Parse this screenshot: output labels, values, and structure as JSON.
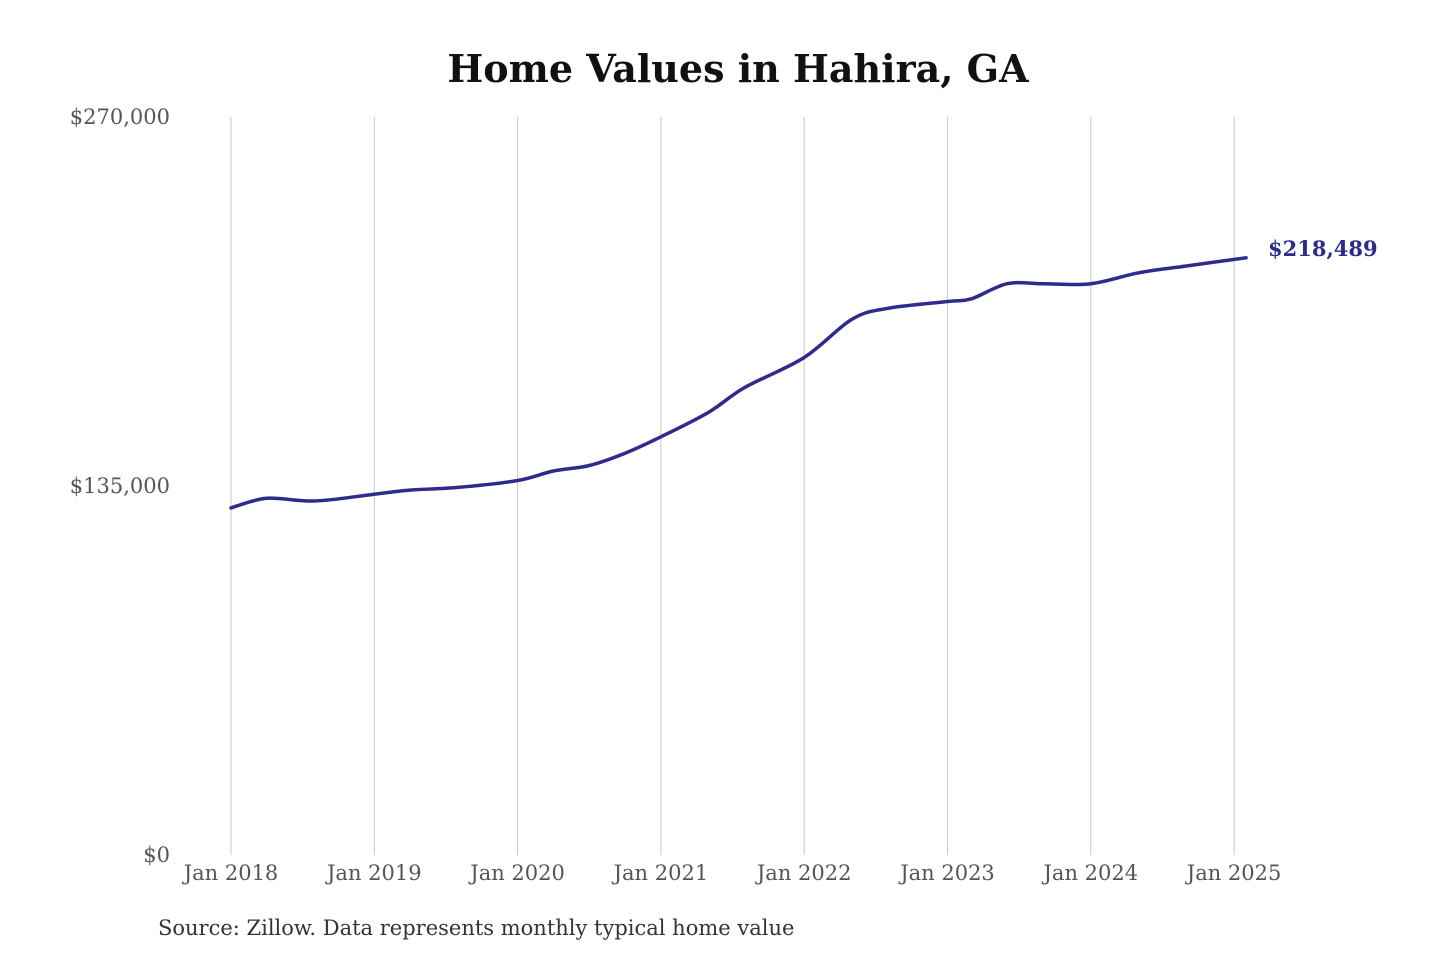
{
  "chart_data": {
    "type": "line",
    "title": "Home Values in Hahira, GA",
    "xlabel": "",
    "ylabel": "",
    "ylim": [
      0,
      270000
    ],
    "yticks": [
      {
        "value": 0,
        "label": "$0"
      },
      {
        "value": 135000,
        "label": "$135,000"
      },
      {
        "value": 270000,
        "label": "$270,000"
      }
    ],
    "xticks": [
      {
        "value": "2018-01",
        "label": "Jan 2018"
      },
      {
        "value": "2019-01",
        "label": "Jan 2019"
      },
      {
        "value": "2020-01",
        "label": "Jan 2020"
      },
      {
        "value": "2021-01",
        "label": "Jan 2021"
      },
      {
        "value": "2022-01",
        "label": "Jan 2022"
      },
      {
        "value": "2023-01",
        "label": "Jan 2023"
      },
      {
        "value": "2024-01",
        "label": "Jan 2024"
      },
      {
        "value": "2025-01",
        "label": "Jan 2025"
      }
    ],
    "grid": "vertical",
    "color": "#2e2b8c",
    "series": [
      {
        "values": [
          {
            "x": "2018-01",
            "y": 127000
          },
          {
            "x": "2018-04",
            "y": 130500
          },
          {
            "x": "2018-08",
            "y": 129500
          },
          {
            "x": "2019-01",
            "y": 132000
          },
          {
            "x": "2019-04",
            "y": 133500
          },
          {
            "x": "2019-08",
            "y": 134500
          },
          {
            "x": "2020-01",
            "y": 137000
          },
          {
            "x": "2020-04",
            "y": 140500
          },
          {
            "x": "2020-07",
            "y": 142500
          },
          {
            "x": "2020-10",
            "y": 147000
          },
          {
            "x": "2021-01",
            "y": 153000
          },
          {
            "x": "2021-05",
            "y": 162000
          },
          {
            "x": "2021-08",
            "y": 171000
          },
          {
            "x": "2022-01",
            "y": 182000
          },
          {
            "x": "2022-05",
            "y": 196000
          },
          {
            "x": "2022-08",
            "y": 200000
          },
          {
            "x": "2023-01",
            "y": 202500
          },
          {
            "x": "2023-03",
            "y": 203500
          },
          {
            "x": "2023-06",
            "y": 209000
          },
          {
            "x": "2023-09",
            "y": 209000
          },
          {
            "x": "2024-01",
            "y": 209000
          },
          {
            "x": "2024-05",
            "y": 213000
          },
          {
            "x": "2024-09",
            "y": 215500
          },
          {
            "x": "2025-02",
            "y": 218489
          }
        ]
      }
    ],
    "end_label": "$218,489"
  },
  "source_note": "Source: Zillow. Data represents monthly typical home value"
}
